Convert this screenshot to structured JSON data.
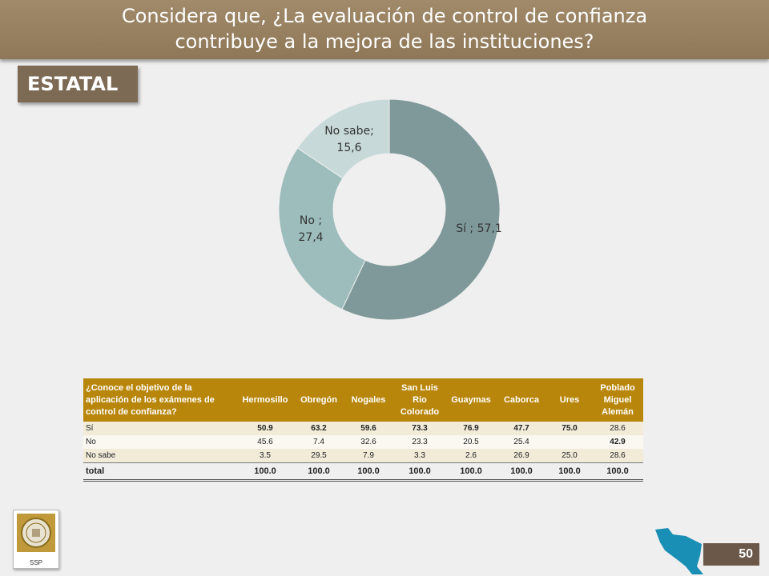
{
  "header": {
    "title_line1": "Considera que, ¿La evaluación de control de confianza",
    "title_line2": "contribuye a la mejora de las instituciones?"
  },
  "section_label": "ESTATAL",
  "chart_data": {
    "type": "pie",
    "variant": "donut",
    "slices": [
      {
        "label": "Sí",
        "value": 57.1,
        "display": "Sí ; 57,1",
        "color": "#7f999b"
      },
      {
        "label": "No",
        "value": 27.4,
        "display_lines": [
          "No ;",
          "27,4"
        ],
        "color": "#9dbcbc"
      },
      {
        "label": "No sabe",
        "value": 15.6,
        "display_lines": [
          "No sabe;",
          "15,6"
        ],
        "color": "#c8d9d9"
      }
    ]
  },
  "table": {
    "question": "¿Conoce el objetivo de la aplicación de los exámenes de control de confianza?",
    "columns": [
      "Hermosillo",
      "Obregón",
      "Nogales",
      "San Luis Rio Colorado",
      "Guaymas",
      "Caborca",
      "Ures",
      "Poblado Miguel Alemán"
    ],
    "rows": [
      {
        "label": "Sí",
        "values": [
          "50.9",
          "63.2",
          "59.6",
          "73.3",
          "76.9",
          "47.7",
          "75.0",
          "28.6"
        ]
      },
      {
        "label": "No",
        "values": [
          "45.6",
          "7.4",
          "32.6",
          "23.3",
          "20.5",
          "25.4",
          "",
          "42.9"
        ]
      },
      {
        "label": "No sabe",
        "values": [
          "3.5",
          "29.5",
          "7.9",
          "3.3",
          "2.6",
          "26.9",
          "25.0",
          "28.6"
        ]
      }
    ],
    "total": {
      "label": "total",
      "values": [
        "100.0",
        "100.0",
        "100.0",
        "100.0",
        "100.0",
        "100.0",
        "100.0",
        "100.0"
      ]
    }
  },
  "footer": {
    "logo_label": "SSP",
    "page_number": "50"
  }
}
